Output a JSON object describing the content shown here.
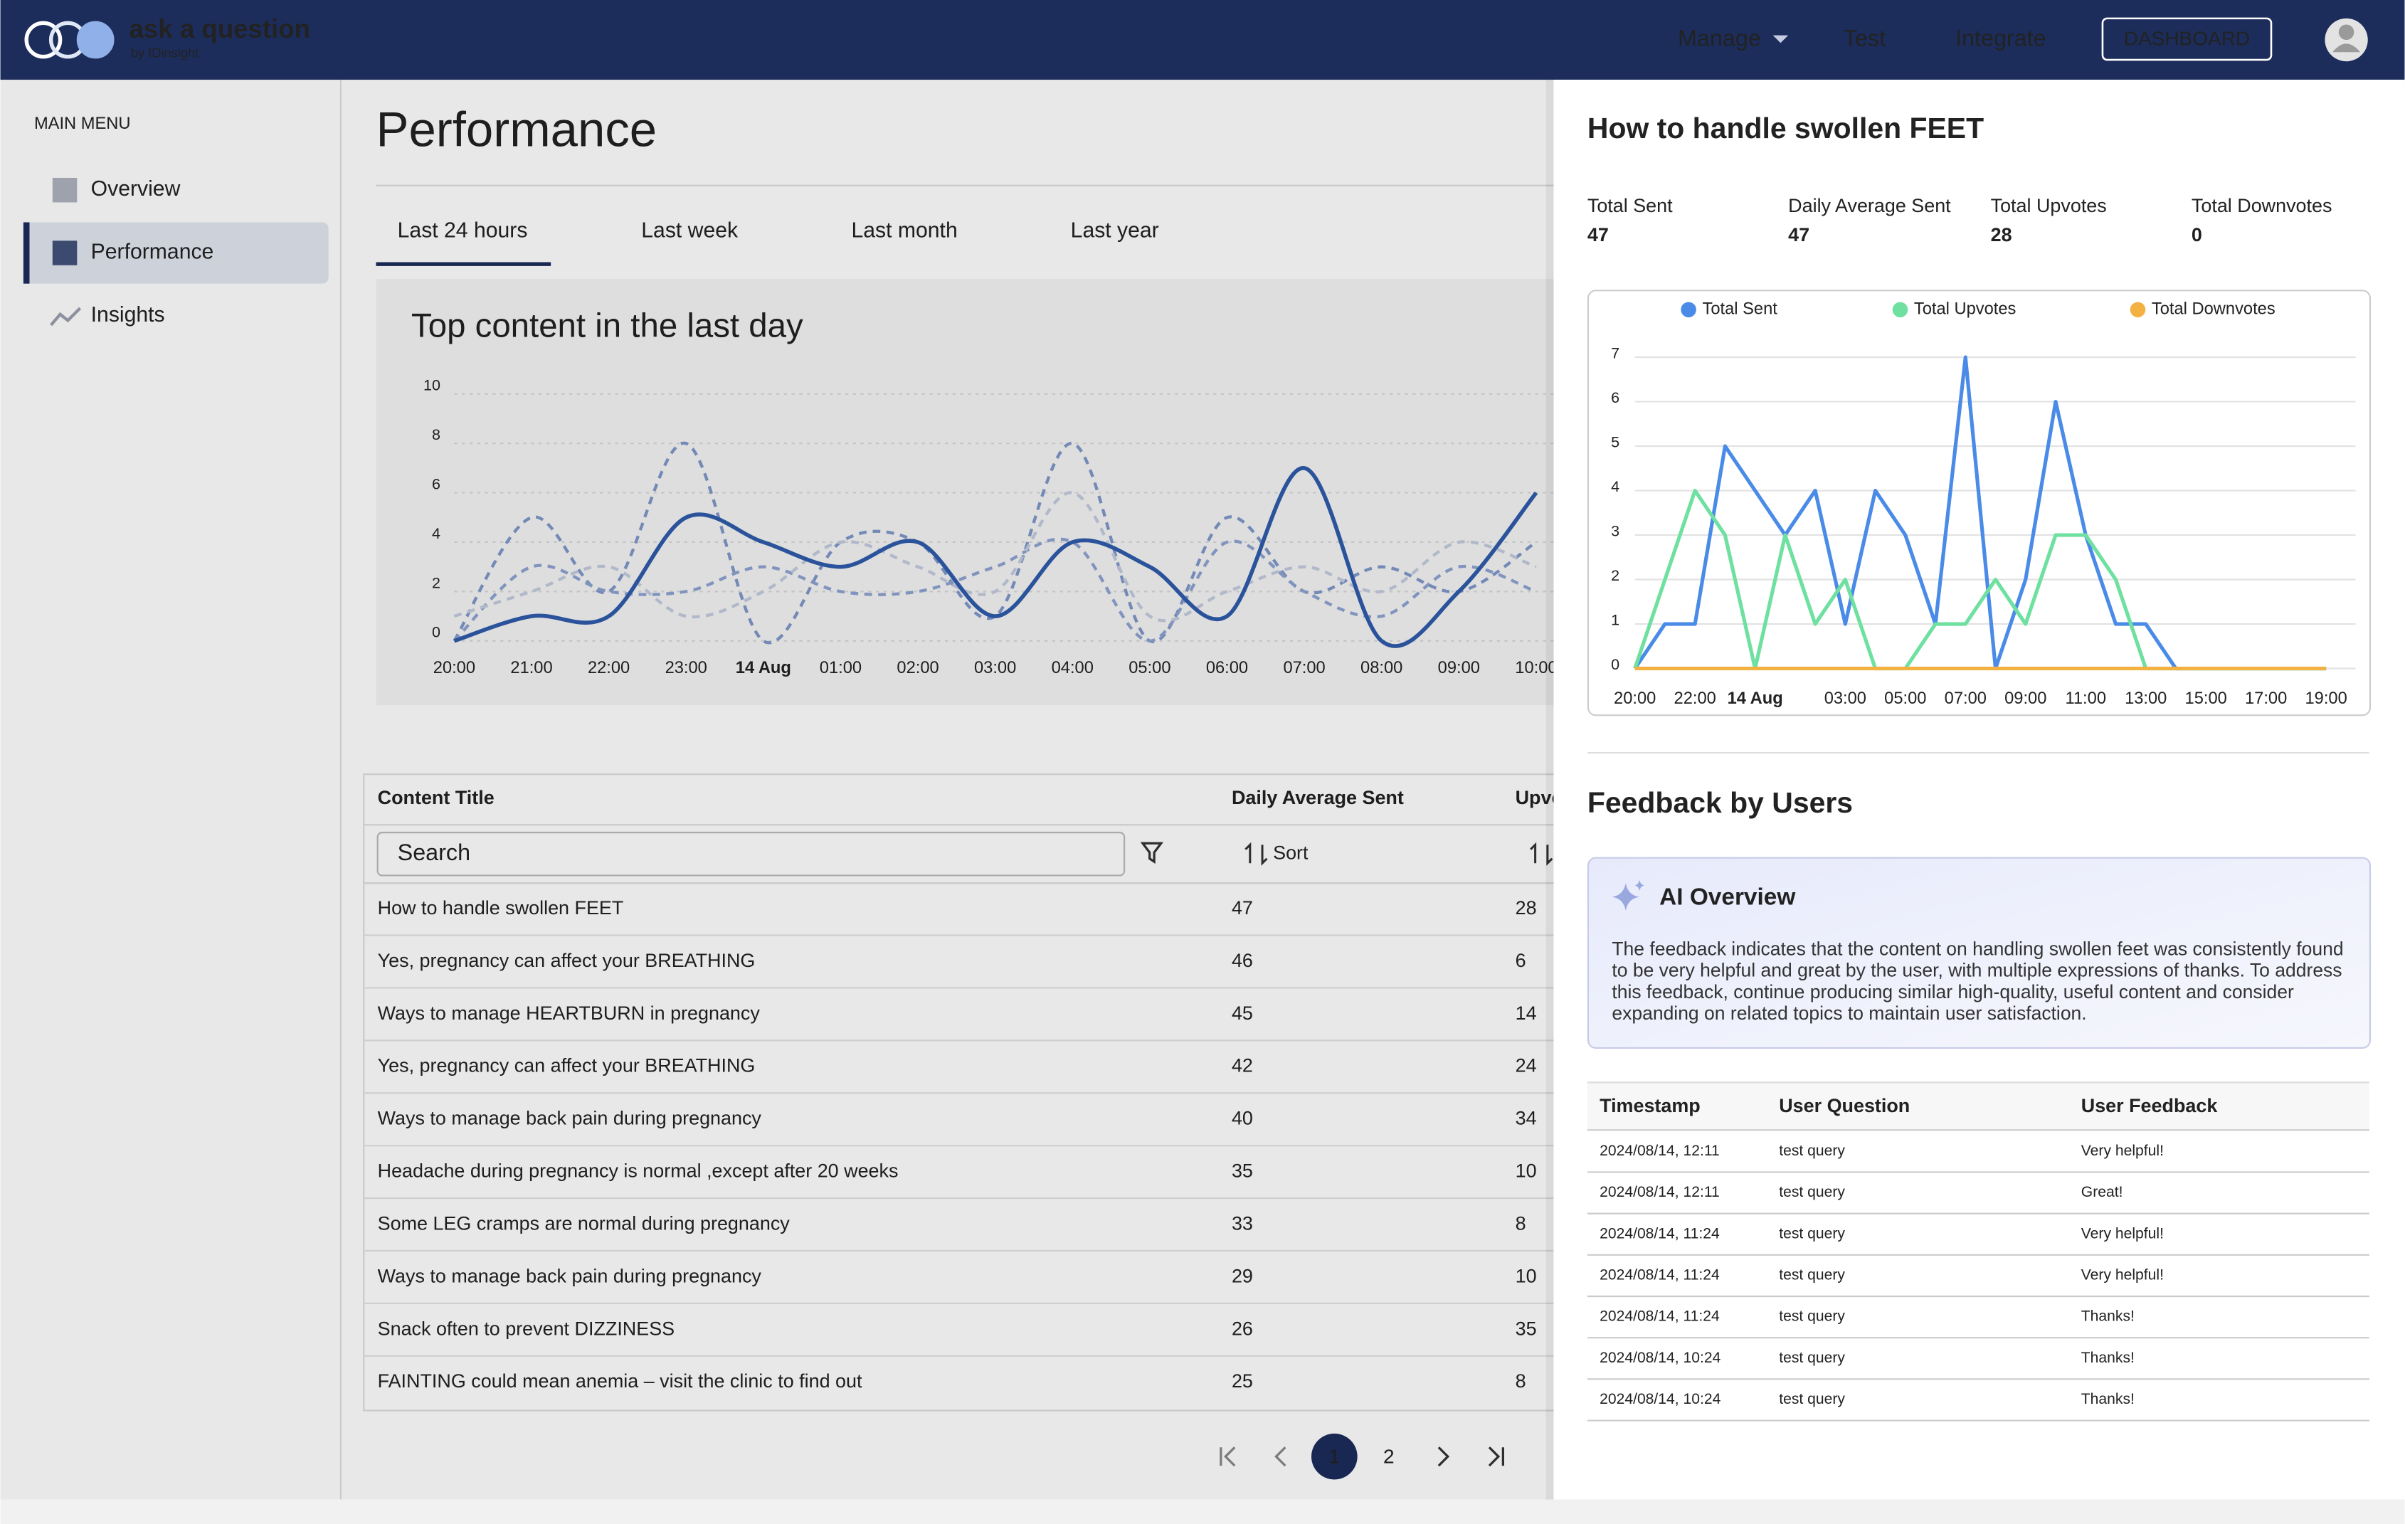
{
  "header": {
    "brand": "ask a question",
    "byline": "by IDinsight",
    "nav": [
      "Manage",
      "Test",
      "Integrate"
    ],
    "button": "DASHBOARD"
  },
  "sidebar": {
    "heading": "MAIN MENU",
    "items": [
      "Overview",
      "Performance",
      "Insights"
    ],
    "selected": 1
  },
  "main": {
    "title": "Performance",
    "tabs": [
      "Last 24 hours",
      "Last week",
      "Last month",
      "Last year"
    ],
    "active_tab": 0,
    "chart": {
      "type": "line",
      "title": "Top content in the last day",
      "categories": [
        "20:00",
        "21:00",
        "22:00",
        "23:00",
        "14 Aug",
        "01:00",
        "02:00",
        "03:00",
        "04:00",
        "05:00",
        "06:00",
        "07:00",
        "08:00",
        "09:00",
        "10:00"
      ],
      "ylim": [
        0,
        10
      ],
      "yticks": [
        0,
        2,
        4,
        6,
        8,
        10
      ],
      "series": [
        {
          "color": "#7f97c9",
          "dashed": true,
          "values": [
            0,
            5,
            2,
            8,
            0,
            4,
            4,
            1,
            8,
            0,
            5,
            2,
            3,
            2,
            4
          ]
        },
        {
          "color": "#8ea3d1",
          "dashed": true,
          "values": [
            0,
            3,
            2,
            2,
            3,
            2,
            2,
            3,
            4,
            0,
            4,
            2,
            1,
            3,
            2
          ]
        },
        {
          "color": "#c3cbdd",
          "dashed": true,
          "values": [
            1,
            2,
            3,
            1,
            2,
            4,
            3,
            2,
            6,
            1,
            2,
            3,
            2,
            4,
            3
          ]
        },
        {
          "color": "#2f5cab",
          "dashed": false,
          "values": [
            0,
            1,
            1,
            5,
            4,
            3,
            4,
            1,
            4,
            3,
            1,
            7,
            0,
            2,
            6
          ]
        }
      ]
    },
    "table": {
      "columns": [
        "Content Title",
        "Daily Average Sent",
        "Upvotes"
      ],
      "search_placeholder": "Search",
      "sort_label": "Sort",
      "rows": [
        [
          "How to handle swollen FEET",
          47,
          28
        ],
        [
          "Yes, pregnancy can affect your BREATHING",
          46,
          6
        ],
        [
          "Ways to manage HEARTBURN in pregnancy",
          45,
          14
        ],
        [
          "Yes, pregnancy can affect your BREATHING",
          42,
          24
        ],
        [
          "Ways to manage back pain during pregnancy",
          40,
          34
        ],
        [
          "Headache during pregnancy is normal ,except after 20 weeks",
          35,
          10
        ],
        [
          "Some LEG cramps are normal during pregnancy",
          33,
          8
        ],
        [
          "Ways to manage back pain during pregnancy",
          29,
          10
        ],
        [
          "Snack often to prevent DIZZINESS",
          26,
          35
        ],
        [
          "FAINTING could mean anemia – visit the clinic to find out",
          25,
          8
        ]
      ]
    },
    "pagination": {
      "pages": [
        1,
        2
      ],
      "current": 1
    }
  },
  "panel": {
    "title": "How to handle swollen FEET",
    "stats": [
      {
        "label": "Total Sent",
        "value": 47
      },
      {
        "label": "Daily Average Sent",
        "value": 47
      },
      {
        "label": "Total Upvotes",
        "value": 28
      },
      {
        "label": "Total Downvotes",
        "value": 0
      }
    ],
    "chart": {
      "type": "line",
      "categories": [
        "20:00",
        null,
        "22:00",
        null,
        "14 Aug",
        null,
        null,
        "03:00",
        null,
        "05:00",
        null,
        "07:00",
        null,
        "09:00",
        null,
        "11:00",
        null,
        "13:00",
        null,
        "15:00",
        null,
        "17:00",
        null,
        "19:00"
      ],
      "ylim": [
        0,
        7
      ],
      "yticks": [
        0,
        1,
        2,
        3,
        4,
        5,
        6,
        7
      ],
      "grid": true,
      "series": [
        {
          "name": "Total Sent",
          "color": "#4a8be8",
          "values": [
            0,
            1,
            1,
            5,
            4,
            3,
            4,
            1,
            4,
            3,
            1,
            7,
            0,
            2,
            6,
            3,
            1,
            1,
            0,
            0,
            0,
            0,
            0,
            0
          ]
        },
        {
          "name": "Total Upvotes",
          "color": "#6ee0a0",
          "values": [
            0,
            2,
            4,
            3,
            0,
            3,
            1,
            2,
            0,
            0,
            1,
            1,
            2,
            1,
            3,
            3,
            2,
            0,
            0,
            0,
            0,
            0,
            0,
            0
          ]
        },
        {
          "name": "Total Downvotes",
          "color": "#f2b141",
          "values": [
            0,
            0,
            0,
            0,
            0,
            0,
            0,
            0,
            0,
            0,
            0,
            0,
            0,
            0,
            0,
            0,
            0,
            0,
            0,
            0,
            0,
            0,
            0,
            0
          ]
        }
      ]
    },
    "feedback_title": "Feedback by Users",
    "ai_title": "AI Overview",
    "ai_text": "The feedback indicates that the content on handling swollen feet was consistently found to be very helpful and great by the user, with multiple expressions of thanks. To address this feedback, continue producing similar high-quality, useful content and consider expanding on related topics to maintain user satisfaction.",
    "feedback_table": {
      "columns": [
        "Timestamp",
        "User Question",
        "User Feedback"
      ],
      "rows": [
        [
          "2024/08/14, 12:11",
          "test query",
          "Very helpful!"
        ],
        [
          "2024/08/14, 12:11",
          "test query",
          "Great!"
        ],
        [
          "2024/08/14, 11:24",
          "test query",
          "Very helpful!"
        ],
        [
          "2024/08/14, 11:24",
          "test query",
          "Very helpful!"
        ],
        [
          "2024/08/14, 11:24",
          "test query",
          "Thanks!"
        ],
        [
          "2024/08/14, 10:24",
          "test query",
          "Thanks!"
        ],
        [
          "2024/08/14, 10:24",
          "test query",
          "Thanks!"
        ]
      ]
    }
  }
}
